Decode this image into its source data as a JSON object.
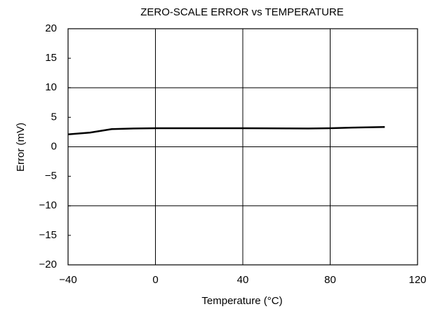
{
  "chart_data": {
    "type": "line",
    "title": "ZERO-SCALE ERROR vs TEMPERATURE",
    "xlabel": "Temperature (°C)",
    "ylabel": "Error (mV)",
    "x": [
      -40,
      -30,
      -20,
      -10,
      0,
      40,
      70,
      80,
      90,
      105
    ],
    "series": [
      {
        "name": "Zero-scale error",
        "color": "#000000",
        "values": [
          2.1,
          2.4,
          3.0,
          3.1,
          3.15,
          3.15,
          3.1,
          3.15,
          3.25,
          3.35
        ]
      }
    ],
    "xlim": [
      -40,
      120
    ],
    "xticks": [
      {
        "value": -40,
        "label": "−40"
      },
      0,
      40,
      80,
      120
    ],
    "ylim": [
      -20,
      20
    ],
    "yticks": [
      {
        "value": -20,
        "label": "−20"
      },
      {
        "value": -15,
        "label": "−15"
      },
      {
        "value": -10,
        "label": "−10"
      },
      {
        "value": -5,
        "label": "−5"
      },
      0,
      5,
      10,
      15,
      20
    ],
    "xgrid": [
      0,
      40,
      80
    ],
    "ygrid": [
      -10,
      0,
      10
    ]
  }
}
